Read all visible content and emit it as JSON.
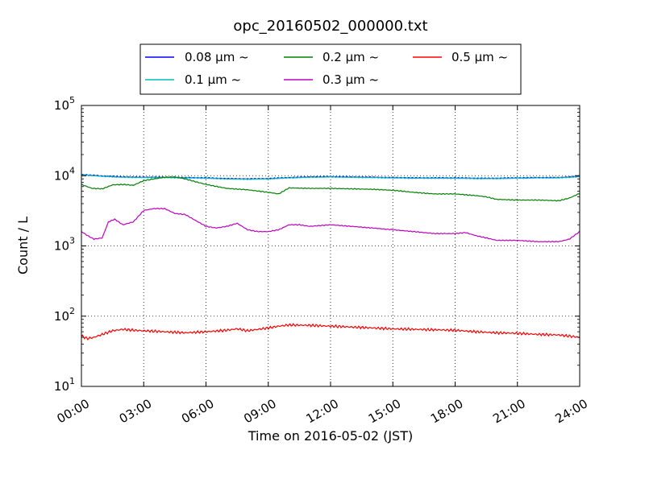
{
  "chart_data": {
    "type": "line",
    "title": "opc_20160502_000000.txt",
    "xlabel": "Time on 2016-05-02 (JST)",
    "ylabel": "Count / L",
    "yscale": "log",
    "ylim": [
      10,
      100000
    ],
    "xlim_hours": [
      0,
      24
    ],
    "grid": true,
    "legend_position": "top-center",
    "x_tick_labels": [
      "00:00",
      "03:00",
      "06:00",
      "09:00",
      "12:00",
      "15:00",
      "18:00",
      "21:00",
      "24:00"
    ],
    "y_tick_labels": [
      {
        "base": "10",
        "exp": "1"
      },
      {
        "base": "10",
        "exp": "2"
      },
      {
        "base": "10",
        "exp": "3"
      },
      {
        "base": "10",
        "exp": "4"
      },
      {
        "base": "10",
        "exp": "5"
      }
    ],
    "series": [
      {
        "name": "0.08 μm ~",
        "color": "#0000ff",
        "x_hours": [
          0,
          1,
          2,
          3,
          4,
          5,
          6,
          7,
          8,
          9,
          10,
          11,
          12,
          13,
          14,
          15,
          16,
          17,
          18,
          19,
          20,
          21,
          22,
          23,
          24
        ],
        "values": [
          10400,
          9900,
          9600,
          9500,
          9500,
          9400,
          9300,
          9100,
          9000,
          9100,
          9400,
          9600,
          9700,
          9600,
          9500,
          9400,
          9300,
          9300,
          9300,
          9200,
          9200,
          9300,
          9400,
          9400,
          9800
        ]
      },
      {
        "name": "0.1 μm ~",
        "color": "#00bfbf",
        "x_hours": [
          0,
          1,
          2,
          3,
          4,
          5,
          6,
          7,
          8,
          9,
          10,
          11,
          12,
          13,
          14,
          15,
          16,
          17,
          18,
          19,
          20,
          21,
          22,
          23,
          24
        ],
        "values": [
          10300,
          9800,
          9500,
          9400,
          9400,
          9300,
          9200,
          9000,
          8900,
          9000,
          9300,
          9500,
          9600,
          9500,
          9400,
          9300,
          9200,
          9200,
          9200,
          9100,
          9100,
          9200,
          9300,
          9300,
          9700
        ]
      },
      {
        "name": "0.2 μm ~",
        "color": "#008000",
        "x_hours": [
          0,
          0.5,
          1,
          1.5,
          2,
          2.5,
          3,
          3.5,
          4,
          4.5,
          5,
          5.5,
          6,
          7,
          8,
          9,
          9.5,
          10,
          11,
          12,
          13,
          14,
          15,
          16,
          17,
          18,
          19,
          19.5,
          20,
          21,
          22,
          23,
          23.5,
          24
        ],
        "values": [
          7500,
          6600,
          6500,
          7400,
          7500,
          7300,
          8500,
          9000,
          9500,
          9600,
          9000,
          8200,
          7500,
          6600,
          6300,
          5800,
          5500,
          6700,
          6600,
          6600,
          6500,
          6400,
          6200,
          5800,
          5500,
          5500,
          5200,
          5000,
          4600,
          4500,
          4500,
          4400,
          4800,
          5600
        ]
      },
      {
        "name": "0.3 μm ~",
        "color": "#bf00bf",
        "x_hours": [
          0,
          0.3,
          0.6,
          1,
          1.3,
          1.6,
          2,
          2.5,
          3,
          3.5,
          4,
          4.5,
          5,
          5.5,
          6,
          6.5,
          7,
          7.5,
          8,
          8.5,
          9,
          9.5,
          10,
          10.5,
          11,
          12,
          13,
          14,
          15,
          16,
          17,
          18,
          18.5,
          19,
          19.5,
          20,
          21,
          22,
          23,
          23.5,
          24
        ],
        "values": [
          1600,
          1400,
          1250,
          1300,
          2200,
          2400,
          2000,
          2200,
          3200,
          3400,
          3400,
          2900,
          2800,
          2300,
          1900,
          1800,
          1900,
          2100,
          1700,
          1600,
          1600,
          1700,
          2000,
          2000,
          1900,
          2000,
          1900,
          1800,
          1700,
          1600,
          1500,
          1500,
          1550,
          1400,
          1300,
          1200,
          1200,
          1150,
          1150,
          1250,
          1600
        ]
      },
      {
        "name": "0.5 μm ~",
        "color": "#ff0000",
        "x_hours": [
          0,
          0.3,
          0.6,
          1,
          1.5,
          2,
          2.5,
          3,
          4,
          5,
          6,
          7,
          7.5,
          8,
          9,
          9.5,
          10,
          11,
          12,
          13,
          14,
          15,
          16,
          17,
          18,
          19,
          20,
          21,
          22,
          23,
          24
        ],
        "values": [
          52,
          48,
          50,
          55,
          62,
          65,
          63,
          62,
          60,
          58,
          60,
          63,
          66,
          62,
          68,
          72,
          75,
          74,
          72,
          70,
          68,
          66,
          65,
          64,
          63,
          60,
          58,
          57,
          55,
          54,
          50
        ]
      }
    ]
  }
}
